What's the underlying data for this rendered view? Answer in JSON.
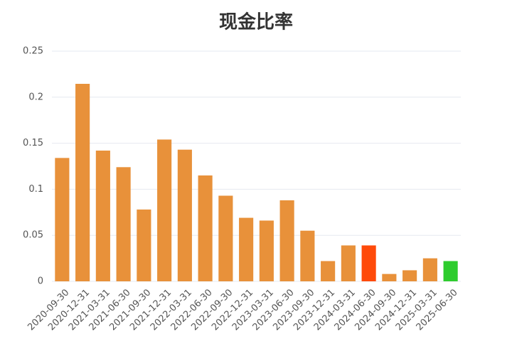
{
  "chart_data": {
    "type": "bar",
    "title": "现金比率",
    "categories": [
      "2020-09-30",
      "2020-12-31",
      "2021-03-31",
      "2021-06-30",
      "2021-09-30",
      "2021-12-31",
      "2022-03-31",
      "2022-06-30",
      "2022-09-30",
      "2022-12-31",
      "2023-03-31",
      "2023-06-30",
      "2023-09-30",
      "2023-12-31",
      "2024-03-31",
      "2024-06-30",
      "2024-09-30",
      "2024-12-31",
      "2025-03-31",
      "2025-06-30"
    ],
    "values": [
      0.134,
      0.2145,
      0.142,
      0.124,
      0.078,
      0.154,
      0.143,
      0.115,
      0.093,
      0.069,
      0.066,
      0.088,
      0.055,
      0.022,
      0.039,
      0.039,
      0.008,
      0.012,
      0.025,
      0.022
    ],
    "colors": [
      "#e8913a",
      "#e8913a",
      "#e8913a",
      "#e8913a",
      "#e8913a",
      "#e8913a",
      "#e8913a",
      "#e8913a",
      "#e8913a",
      "#e8913a",
      "#e8913a",
      "#e8913a",
      "#e8913a",
      "#e8913a",
      "#e8913a",
      "#ff4a0a",
      "#e8913a",
      "#e8913a",
      "#e8913a",
      "#2ecc2e"
    ],
    "ylim": [
      0,
      0.25
    ],
    "yticks": [
      0,
      0.05,
      0.1,
      0.15,
      0.2,
      0.25
    ],
    "grid": true
  }
}
